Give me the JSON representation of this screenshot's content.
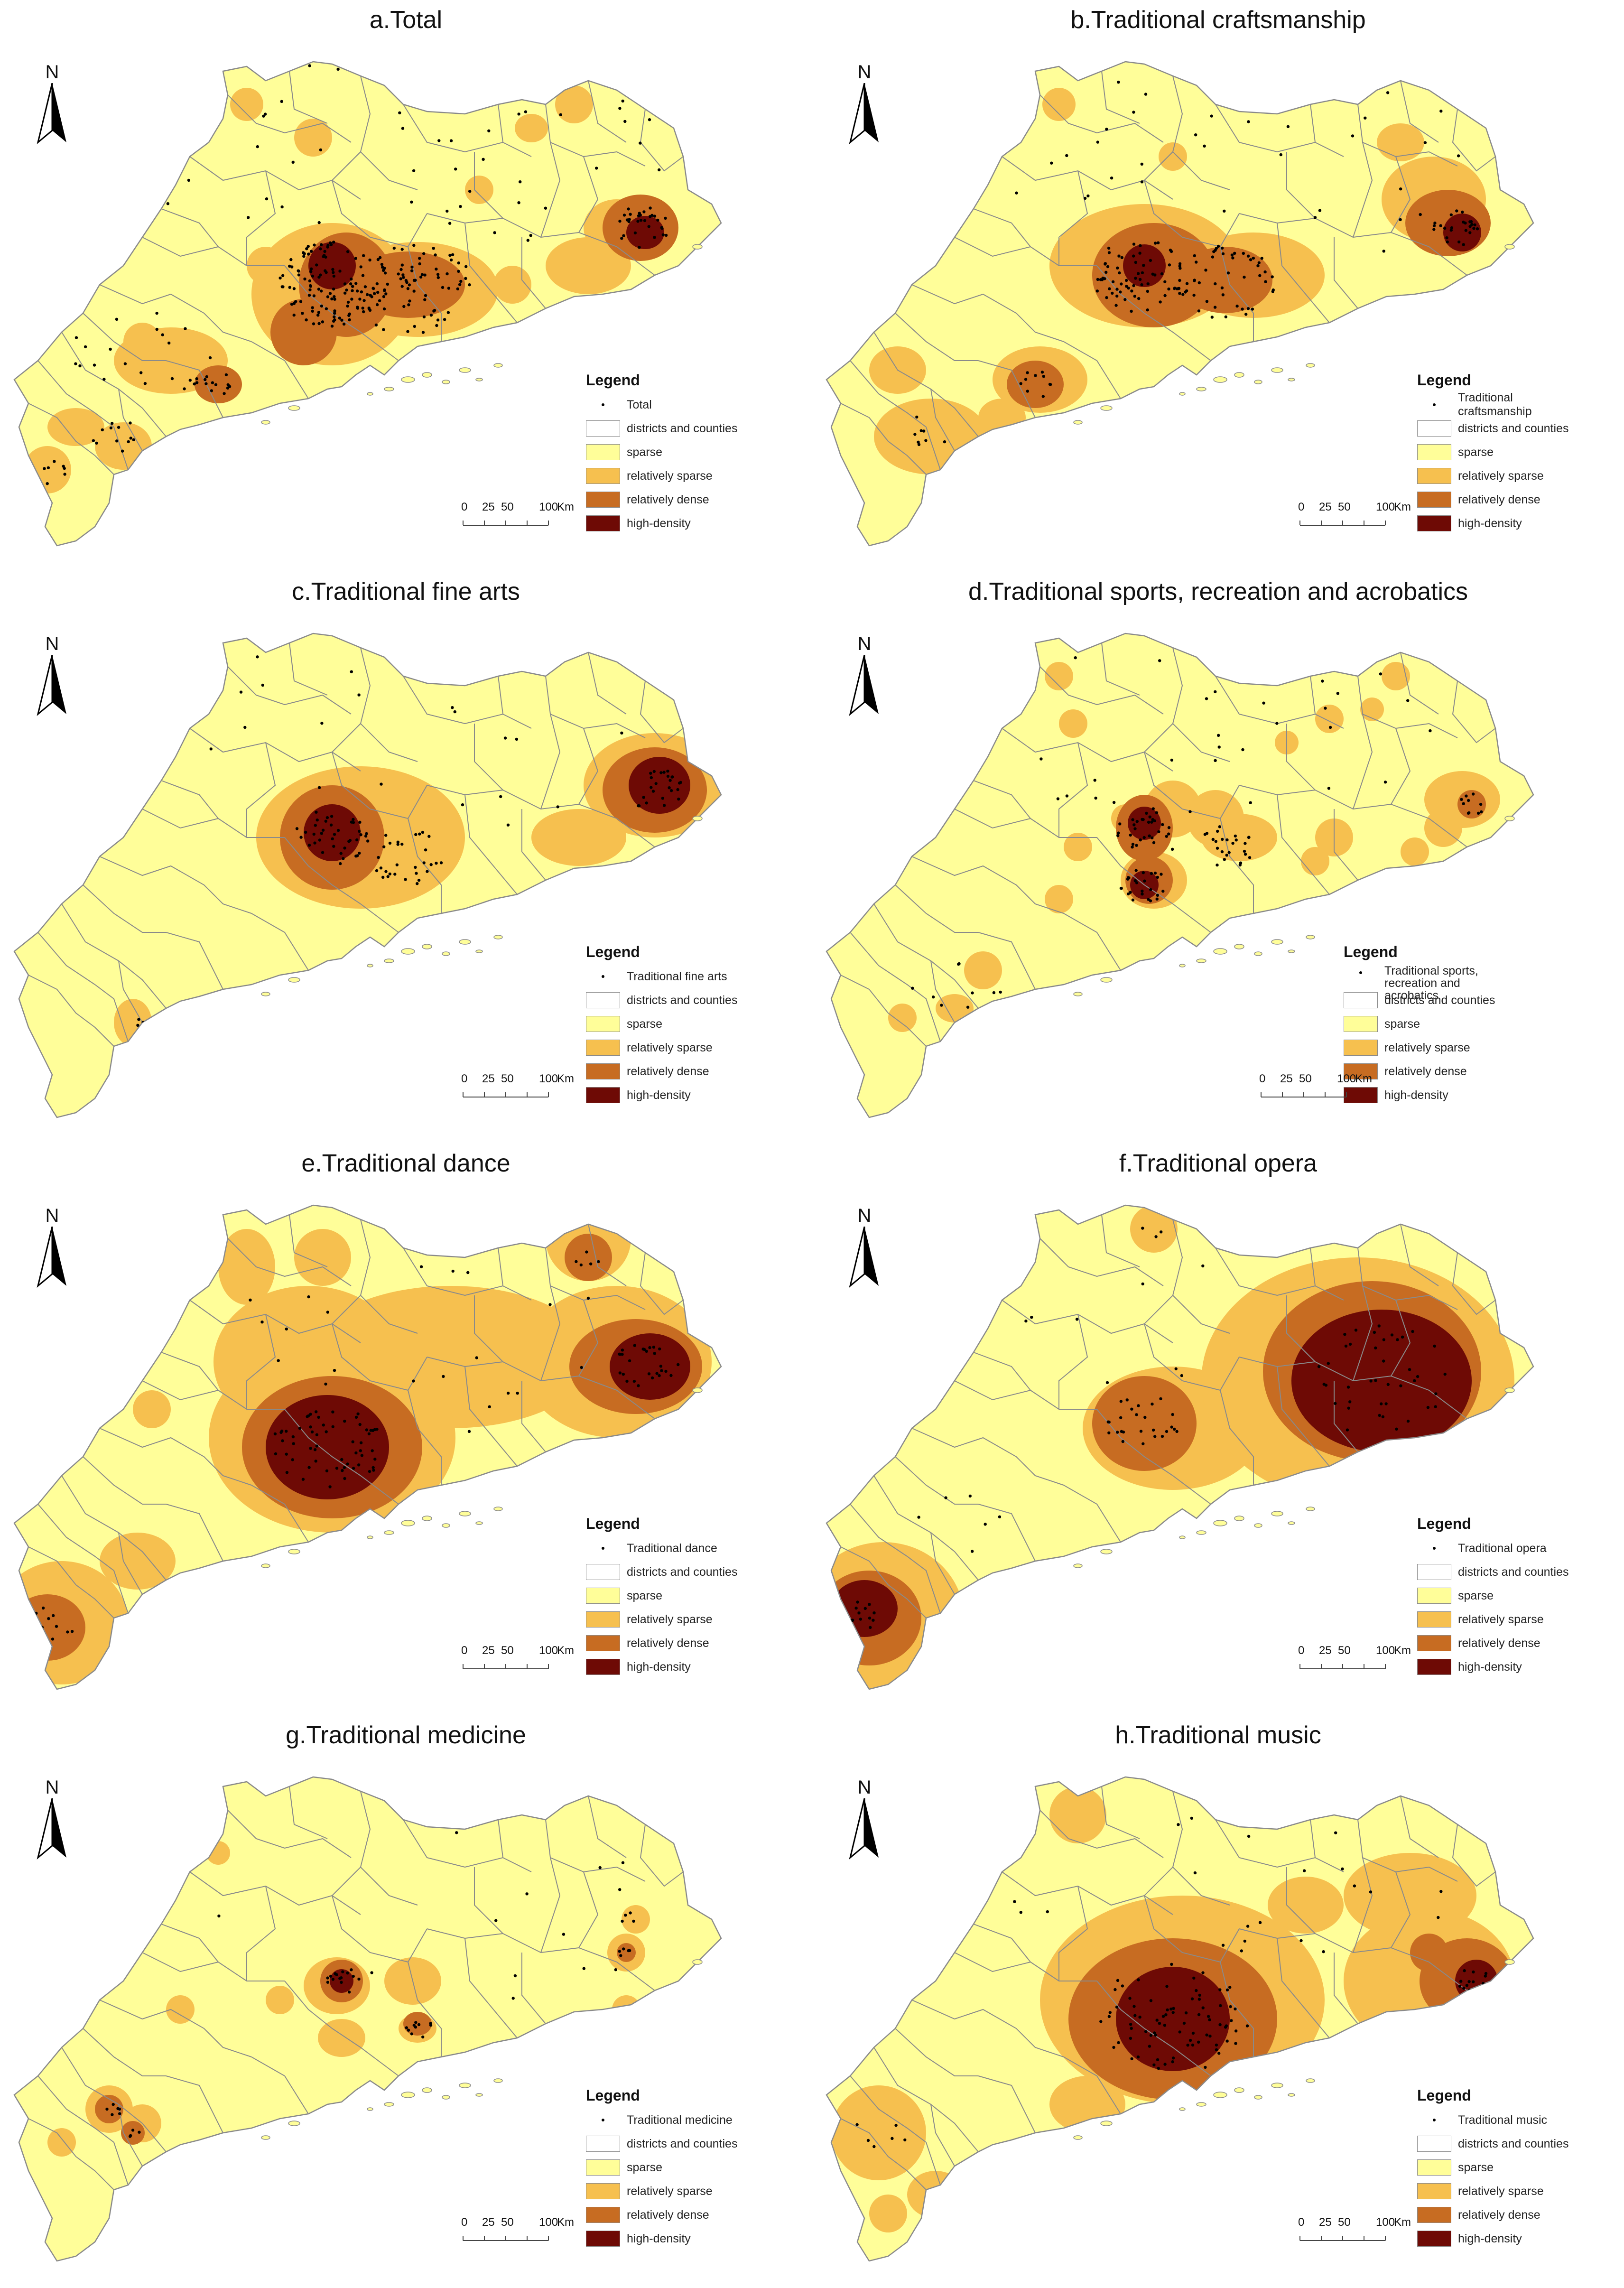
{
  "panels": [
    {
      "title": "a.Total",
      "legend_point": "Total"
    },
    {
      "title": "b.Traditional craftsmanship",
      "legend_point": "Traditional craftsmanship"
    },
    {
      "title": "c.Traditional fine arts",
      "legend_point": "Traditional fine arts"
    },
    {
      "title": "d.Traditional sports, recreation and acrobatics",
      "legend_point": "Traditional sports, recreation and acrobatics"
    },
    {
      "title": "e.Traditional dance",
      "legend_point": "Traditional dance"
    },
    {
      "title": "f.Traditional opera",
      "legend_point": "Traditional opera"
    },
    {
      "title": "g.Traditional medicine",
      "legend_point": "Traditional medicine"
    },
    {
      "title": "h.Traditional music",
      "legend_point": "Traditional music"
    }
  ],
  "legend": {
    "title": "Legend",
    "boundary": "districts and counties",
    "classes": [
      {
        "label": "sparse",
        "color": "#fffe99"
      },
      {
        "label": "relatively sparse",
        "color": "#f6c04f"
      },
      {
        "label": "relatively dense",
        "color": "#c76c22"
      },
      {
        "label": "high-density",
        "color": "#6e0a05"
      }
    ]
  },
  "north_label": "N",
  "scale": {
    "ticks": [
      "0",
      "25",
      "50",
      "100"
    ],
    "unit": "Km"
  },
  "colors": {
    "sparse": "#fffe99",
    "relatively_sparse": "#f6c04f",
    "relatively_dense": "#c76c22",
    "high_density": "#6e0a05",
    "boundary": "#8a8a8a"
  }
}
